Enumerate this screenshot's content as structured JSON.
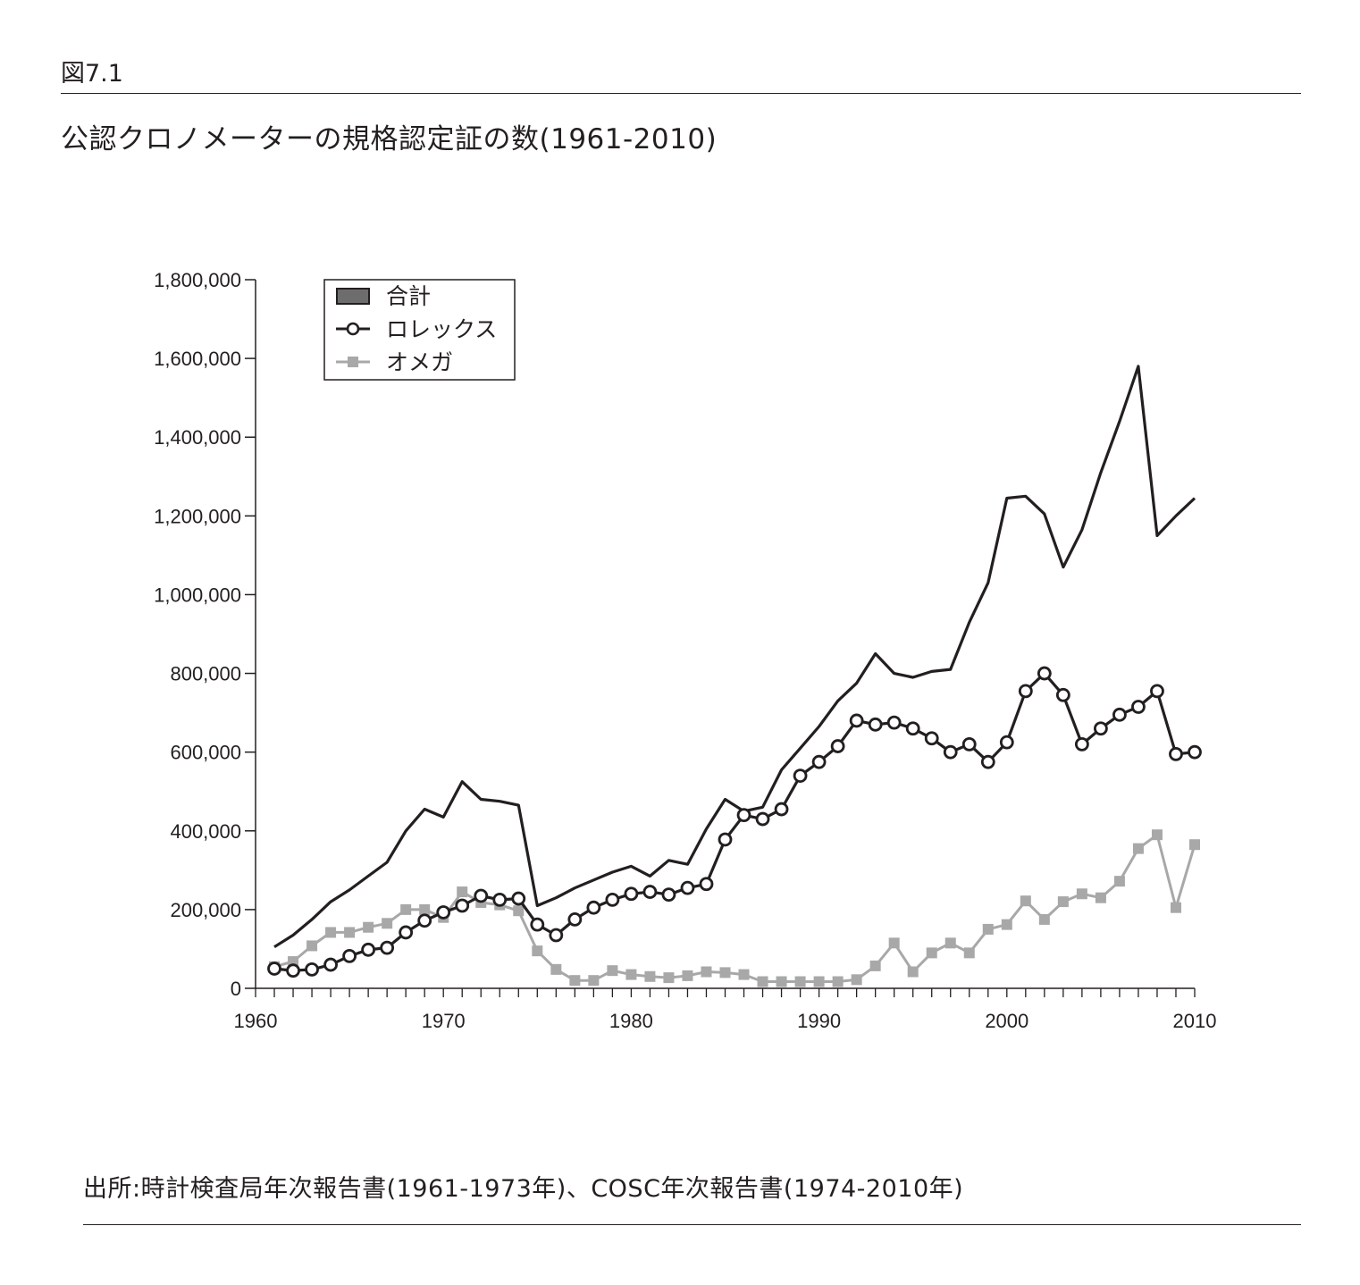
{
  "figure_label": "図7.1",
  "title": "公認クロノメーターの規格認定証の数(1961-2010)",
  "source": "出所:時計検査局年次報告書(1961-1973年)、COSC年次報告書(1974-2010年)",
  "colors": {
    "total": "#231f20",
    "rolex": "#231f20",
    "omega": "#a8a8a8",
    "legend_swatch": "#6d6d6d"
  },
  "chart_data": {
    "type": "line",
    "title": "",
    "xlabel": "",
    "ylabel": "",
    "xlim": [
      1960,
      2010
    ],
    "ylim": [
      0,
      1800000
    ],
    "x_ticks": [
      1960,
      1970,
      1980,
      1990,
      2000,
      2010
    ],
    "y_ticks": [
      0,
      200000,
      400000,
      600000,
      800000,
      1000000,
      1200000,
      1400000,
      1600000,
      1800000
    ],
    "x_tick_labels": [
      "1960",
      "1970",
      "1980",
      "1990",
      "2000",
      "2010"
    ],
    "y_tick_labels": [
      "0",
      "200,000",
      "400,000",
      "600,000",
      "800,000",
      "1,000,000",
      "1,200,000",
      "1,400,000",
      "1,600,000",
      "1,800,000"
    ],
    "legend_position": "top-left",
    "grid": false,
    "x": [
      1961,
      1962,
      1963,
      1964,
      1965,
      1966,
      1967,
      1968,
      1969,
      1970,
      1971,
      1972,
      1973,
      1974,
      1975,
      1976,
      1977,
      1978,
      1979,
      1980,
      1981,
      1982,
      1983,
      1984,
      1985,
      1986,
      1987,
      1988,
      1989,
      1990,
      1991,
      1992,
      1993,
      1994,
      1995,
      1996,
      1997,
      1998,
      1999,
      2000,
      2001,
      2002,
      2003,
      2004,
      2005,
      2006,
      2007,
      2008,
      2009,
      2010
    ],
    "series": [
      {
        "name": "合計",
        "marker": "none",
        "values": [
          105000,
          135000,
          175000,
          220000,
          250000,
          285000,
          320000,
          400000,
          455000,
          435000,
          525000,
          480000,
          475000,
          465000,
          210000,
          230000,
          255000,
          275000,
          295000,
          310000,
          285000,
          325000,
          315000,
          405000,
          480000,
          450000,
          460000,
          555000,
          610000,
          665000,
          730000,
          775000,
          850000,
          800000,
          790000,
          805000,
          810000,
          930000,
          1030000,
          1245000,
          1250000,
          1205000,
          1070000,
          1165000,
          1310000,
          1440000,
          1580000,
          1150000,
          1200000,
          1245000
        ]
      },
      {
        "name": "ロレックス",
        "marker": "circle",
        "values": [
          50000,
          45000,
          48000,
          60000,
          82000,
          98000,
          103000,
          142000,
          172000,
          193000,
          210000,
          235000,
          225000,
          228000,
          162000,
          135000,
          175000,
          205000,
          225000,
          240000,
          245000,
          238000,
          255000,
          265000,
          378000,
          440000,
          430000,
          455000,
          540000,
          575000,
          615000,
          680000,
          670000,
          675000,
          660000,
          635000,
          600000,
          620000,
          575000,
          625000,
          755000,
          800000,
          745000,
          620000,
          660000,
          695000,
          715000,
          755000,
          595000,
          600000
        ]
      },
      {
        "name": "オメガ",
        "marker": "square",
        "values": [
          55000,
          68000,
          108000,
          142000,
          142000,
          155000,
          165000,
          200000,
          200000,
          180000,
          245000,
          218000,
          212000,
          197000,
          95000,
          48000,
          20000,
          20000,
          45000,
          35000,
          30000,
          27000,
          32000,
          42000,
          40000,
          35000,
          17000,
          17000,
          17000,
          17000,
          17000,
          22000,
          57000,
          115000,
          42000,
          90000,
          115000,
          90000,
          150000,
          162000,
          222000,
          175000,
          220000,
          240000,
          230000,
          272000,
          355000,
          390000,
          205000,
          365000
        ]
      }
    ]
  }
}
